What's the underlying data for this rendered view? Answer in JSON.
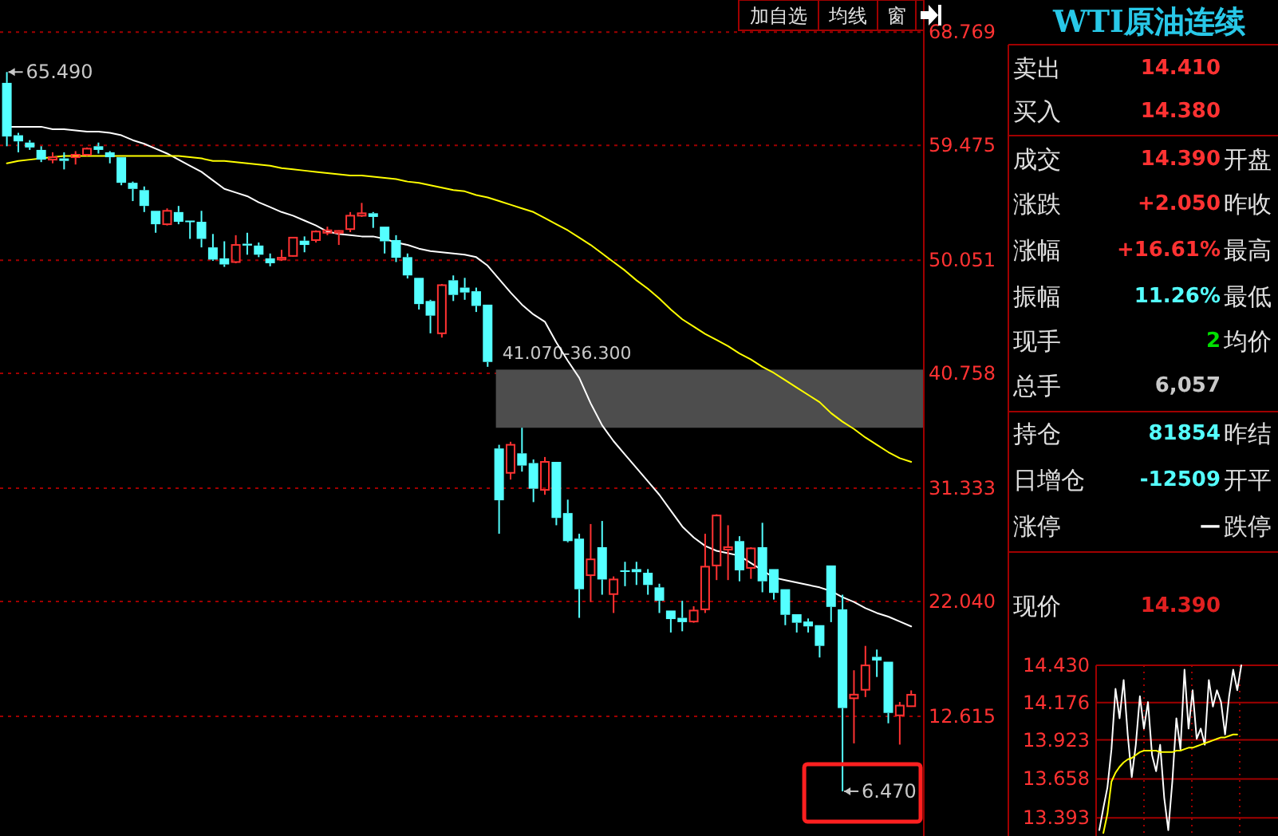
{
  "chart_data": [
    {
      "type": "candlestick",
      "categories": [
        null,
        null,
        null,
        null,
        null,
        null,
        null,
        null,
        null,
        null,
        null,
        null,
        null,
        null,
        null,
        null,
        null,
        null,
        null,
        null,
        null,
        null,
        null,
        null,
        null,
        null,
        null,
        null,
        null,
        null,
        null,
        null,
        null,
        null,
        null,
        null,
        null,
        null,
        null,
        null,
        null,
        null,
        null,
        null,
        null,
        null,
        null,
        null,
        null,
        null,
        null,
        null,
        null,
        null,
        null,
        null,
        null,
        null,
        null,
        null,
        null,
        null,
        null,
        null,
        null,
        null,
        null,
        null,
        null,
        null,
        null,
        null,
        null,
        null,
        null,
        null,
        null,
        null,
        null,
        null
      ],
      "ohlc": [
        [
          64.6,
          65.49,
          59.4,
          60.2
        ],
        [
          60.3,
          60.5,
          58.9,
          59.8
        ],
        [
          59.7,
          59.9,
          59.1,
          59.3
        ],
        [
          59.1,
          59.4,
          58.1,
          58.3
        ],
        [
          58.3,
          58.9,
          58.0,
          58.5
        ],
        [
          58.4,
          58.9,
          57.5,
          58.2
        ],
        [
          58.5,
          59.0,
          57.9,
          58.7
        ],
        [
          58.7,
          59.3,
          58.6,
          59.2
        ],
        [
          59.4,
          59.7,
          58.8,
          59.1
        ],
        [
          58.9,
          59.0,
          58.0,
          58.5
        ],
        [
          58.5,
          58.5,
          56.2,
          56.4
        ],
        [
          56.4,
          56.5,
          54.9,
          55.9
        ],
        [
          55.8,
          56.1,
          54.0,
          54.5
        ],
        [
          54.1,
          54.1,
          52.3,
          53.0
        ],
        [
          53.0,
          54.3,
          52.9,
          54.1
        ],
        [
          54.0,
          54.5,
          53.0,
          53.2
        ],
        [
          53.3,
          53.3,
          51.8,
          53.2
        ],
        [
          53.2,
          54.1,
          51.1,
          51.8
        ],
        [
          51.1,
          52.2,
          50.0,
          50.1
        ],
        [
          50.2,
          51.6,
          49.5,
          49.7
        ],
        [
          49.9,
          52.1,
          49.8,
          51.3
        ],
        [
          51.4,
          52.3,
          50.5,
          51.25
        ],
        [
          51.25,
          51.5,
          50.3,
          50.5
        ],
        [
          50.2,
          50.6,
          49.55,
          49.8
        ],
        [
          50.1,
          50.9,
          50.0,
          50.25
        ],
        [
          50.4,
          51.95,
          50.35,
          51.9
        ],
        [
          51.65,
          52.0,
          50.7,
          51.3
        ],
        [
          51.7,
          52.5,
          51.5,
          52.4
        ],
        [
          52.3,
          52.8,
          52.1,
          52.5
        ],
        [
          52.3,
          52.5,
          51.3,
          52.45
        ],
        [
          52.6,
          54.0,
          52.35,
          53.7
        ],
        [
          53.7,
          54.75,
          53.6,
          53.9
        ],
        [
          53.9,
          54.0,
          52.7,
          53.6
        ],
        [
          52.8,
          52.8,
          50.6,
          51.6
        ],
        [
          51.7,
          52.1,
          49.9,
          50.25
        ],
        [
          50.3,
          50.6,
          48.55,
          48.8
        ],
        [
          48.6,
          48.6,
          46.0,
          46.45
        ],
        [
          46.7,
          46.8,
          44.05,
          45.5
        ],
        [
          44.05,
          48.1,
          43.7,
          48.0
        ],
        [
          48.4,
          48.8,
          46.7,
          47.2
        ],
        [
          47.8,
          48.6,
          46.8,
          47.4
        ],
        [
          47.5,
          47.8,
          45.8,
          46.3
        ],
        [
          46.4,
          46.4,
          41.3,
          41.7
        ],
        [
          34.6,
          34.9,
          27.6,
          30.35
        ],
        [
          32.6,
          35.15,
          32.05,
          34.9
        ],
        [
          34.2,
          36.3,
          32.7,
          33.2
        ],
        [
          33.4,
          33.7,
          30.2,
          31.3
        ],
        [
          31.2,
          33.9,
          30.8,
          33.5
        ],
        [
          33.5,
          33.5,
          28.3,
          28.9
        ],
        [
          29.3,
          30.4,
          26.9,
          27.0
        ],
        [
          27.2,
          27.6,
          20.7,
          23.05
        ],
        [
          24.2,
          28.4,
          22.0,
          25.5
        ],
        [
          26.5,
          28.65,
          22.6,
          23.85
        ],
        [
          22.65,
          24.1,
          21.1,
          23.85
        ],
        [
          24.6,
          25.3,
          23.3,
          24.5
        ],
        [
          24.7,
          25.3,
          23.4,
          24.45
        ],
        [
          24.4,
          24.7,
          22.6,
          23.4
        ],
        [
          23.2,
          23.5,
          21.1,
          22.1
        ],
        [
          21.3,
          21.3,
          19.5,
          20.6
        ],
        [
          20.7,
          22.1,
          19.6,
          20.35
        ],
        [
          20.4,
          21.65,
          20.3,
          21.3
        ],
        [
          21.4,
          27.6,
          21.1,
          24.9
        ],
        [
          25.0,
          29.2,
          23.8,
          29.1
        ],
        [
          26.3,
          28.3,
          23.8,
          26.5
        ],
        [
          27.0,
          27.4,
          23.7,
          24.6
        ],
        [
          24.8,
          26.5,
          23.9,
          26.4
        ],
        [
          26.5,
          28.5,
          22.8,
          23.7
        ],
        [
          24.7,
          24.7,
          22.2,
          22.75
        ],
        [
          23.05,
          23.05,
          20.1,
          20.95
        ],
        [
          21.0,
          21.0,
          19.5,
          20.3
        ],
        [
          20.4,
          20.65,
          19.5,
          20.0
        ],
        [
          20.1,
          20.1,
          17.45,
          18.4
        ],
        [
          25.0,
          25.0,
          20.35,
          21.6
        ],
        [
          21.4,
          22.6,
          6.47,
          13.3
        ],
        [
          14.1,
          16.4,
          10.4,
          14.4
        ],
        [
          14.8,
          18.4,
          14.2,
          16.8
        ],
        [
          17.5,
          18.1,
          15.85,
          17.2
        ],
        [
          17.1,
          17.1,
          12.05,
          12.9
        ],
        [
          12.7,
          13.8,
          10.3,
          13.5
        ],
        [
          13.45,
          14.75,
          13.4,
          14.39
        ]
      ],
      "colors": [
        "#54ffff",
        "#54ffff",
        "#54ffff",
        "#54ffff",
        "#ff3232",
        "#54ffff",
        "#ff3232",
        "#ff3232",
        "#54ffff",
        "#54ffff",
        "#54ffff",
        "#54ffff",
        "#54ffff",
        "#54ffff",
        "#ff3232",
        "#54ffff",
        "#54ffff",
        "#54ffff",
        "#54ffff",
        "#54ffff",
        "#ff3232",
        "#54ffff",
        "#54ffff",
        "#54ffff",
        "#ff3232",
        "#ff3232",
        "#54ffff",
        "#ff3232",
        "#ff3232",
        "#ff3232",
        "#ff3232",
        "#ff3232",
        "#54ffff",
        "#54ffff",
        "#54ffff",
        "#54ffff",
        "#54ffff",
        "#54ffff",
        "#ff3232",
        "#54ffff",
        "#54ffff",
        "#54ffff",
        "#54ffff",
        "#54ffff",
        "#ff3232",
        "#54ffff",
        "#54ffff",
        "#ff3232",
        "#54ffff",
        "#54ffff",
        "#54ffff",
        "#ff3232",
        "#54ffff",
        "#ff3232",
        "#54ffff",
        "#54ffff",
        "#54ffff",
        "#54ffff",
        "#54ffff",
        "#54ffff",
        "#ff3232",
        "#ff3232",
        "#ff3232",
        "#ff3232",
        "#54ffff",
        "#ff3232",
        "#54ffff",
        "#54ffff",
        "#54ffff",
        "#54ffff",
        "#54ffff",
        "#54ffff",
        "#54ffff",
        "#54ffff",
        "#ff3232",
        "#ff3232",
        "#54ffff",
        "#54ffff",
        "#ff3232",
        "#ff3232"
      ],
      "series": [
        {
          "type": "line",
          "color": "#ffffff",
          "values": [
            61.0,
            61.0,
            61.0,
            61.0,
            60.8,
            60.8,
            60.7,
            60.6,
            60.6,
            60.5,
            60.3,
            59.9,
            59.6,
            59.2,
            58.8,
            58.3,
            57.8,
            57.3,
            56.6,
            55.9,
            55.6,
            55.3,
            54.8,
            54.4,
            54.0,
            53.7,
            53.3,
            52.9,
            52.4,
            52.2,
            52.1,
            52.0,
            52.0,
            51.8,
            51.5,
            51.3,
            51.0,
            50.8,
            50.7,
            50.6,
            50.5,
            50.3,
            49.6,
            48.5,
            47.4,
            46.4,
            45.6,
            45.0,
            43.3,
            41.8,
            40.4,
            38.3,
            36.5,
            35.2,
            34.1,
            33.0,
            31.9,
            30.8,
            29.5,
            28.2,
            27.3,
            26.6,
            26.2,
            26.0,
            25.8,
            25.2,
            24.6,
            24.0,
            23.8,
            23.6,
            23.4,
            23.2,
            22.9,
            22.4,
            22.0,
            21.5,
            21.1,
            20.8,
            20.4,
            20.0
          ]
        },
        {
          "type": "line",
          "color": "#ffff00",
          "values": [
            58.0,
            58.2,
            58.3,
            58.4,
            58.5,
            58.6,
            58.6,
            58.6,
            58.6,
            58.6,
            58.6,
            58.6,
            58.6,
            58.6,
            58.6,
            58.6,
            58.5,
            58.4,
            58.2,
            58.2,
            58.1,
            58.0,
            57.9,
            57.8,
            57.6,
            57.5,
            57.4,
            57.3,
            57.2,
            57.1,
            57.0,
            57.0,
            56.9,
            56.8,
            56.7,
            56.5,
            56.4,
            56.2,
            56.0,
            55.8,
            55.7,
            55.4,
            55.2,
            54.9,
            54.6,
            54.3,
            54.0,
            53.5,
            53.0,
            52.5,
            51.9,
            51.3,
            50.6,
            49.9,
            49.2,
            48.4,
            47.7,
            46.9,
            46.0,
            45.2,
            44.6,
            44.0,
            43.5,
            43.0,
            42.4,
            41.9,
            41.3,
            40.8,
            40.2,
            39.6,
            39.0,
            38.4,
            37.5,
            36.8,
            36.2,
            35.5,
            34.9,
            34.3,
            33.8,
            33.5
          ]
        }
      ],
      "ylim": [
        2.8,
        71.4
      ],
      "yticks": [
        68.769,
        59.475,
        50.051,
        40.758,
        31.333,
        {
          "value": 22.04,
          "label": "22.040"
        },
        12.615
      ],
      "grid": "y",
      "tick_labels": "y",
      "bands": [
        {
          "axis": "y",
          "from": 36.3,
          "to": 41.07,
          "color": "#4d4d4d"
        }
      ],
      "annotations": [
        "65.490",
        {
          "text": "41.070-36.300",
          "y": 41.07
        },
        "6.470",
        "加自选",
        "均线",
        "窗"
      ]
    },
    {
      "type": "other",
      "title": "WTI原油连续",
      "categories": [
        "卖出",
        "买入",
        "成交",
        "涨跌",
        "涨幅",
        "振幅",
        "现手",
        "总手",
        "持仓",
        "日增仓",
        "涨停",
        "现价"
      ],
      "value_labels": [
        "14.410",
        "14.380",
        "14.390",
        "+2.050",
        "+16.61%",
        "11.26%",
        "2",
        "6,057",
        "81854",
        "-12509",
        "—",
        "14.390"
      ],
      "colors": [
        "#ff3232",
        "#ff3232",
        "#ff3232",
        "#ff3232",
        "#ff3232",
        "#54ffff",
        "#00e000",
        "#c8c8c8",
        "#54ffff",
        "#54ffff",
        "#ffffff",
        "#e02020"
      ],
      "y2_categories": [
        null,
        null,
        "开盘",
        "昨收",
        "最高",
        "最低",
        "均价",
        null,
        "昨结",
        "开平",
        "跌停",
        null
      ]
    },
    {
      "type": "line",
      "categories": [
        null,
        null,
        null,
        null,
        null,
        null,
        null,
        null,
        null,
        null,
        null,
        null,
        null,
        null,
        null,
        null,
        null,
        null,
        null,
        null,
        null,
        null,
        null,
        null,
        null,
        null,
        null,
        null,
        null,
        null,
        null,
        null,
        null,
        null,
        null,
        null
      ],
      "series": [
        {
          "color": "#ffffff",
          "values": [
            13.31,
            13.46,
            13.6,
            13.86,
            14.27,
            14.07,
            14.33,
            13.96,
            13.67,
            13.89,
            14.22,
            14.0,
            14.18,
            13.82,
            13.71,
            13.89,
            13.53,
            13.31,
            13.64,
            14.07,
            13.86,
            14.4,
            14.0,
            14.26,
            13.93,
            14.0,
            13.89,
            14.33,
            14.15,
            14.26,
            14.18,
            13.96,
            14.22,
            14.4,
            14.26,
            14.43
          ]
        },
        {
          "color": "#ffff00",
          "values": [
            null,
            13.29,
            13.42,
            13.64,
            13.7,
            13.74,
            13.77,
            13.79,
            13.8,
            13.82,
            13.84,
            13.85,
            13.85,
            13.85,
            13.85,
            13.84,
            13.84,
            13.84,
            13.84,
            13.85,
            13.85,
            13.86,
            13.87,
            13.87,
            13.88,
            13.89,
            13.9,
            13.91,
            13.92,
            13.93,
            13.94,
            13.94,
            13.95,
            13.96,
            13.96,
            null
          ]
        }
      ],
      "ylim": [
        13.27,
        14.43
      ],
      "yticks": [
        {
          "value": 14.43,
          "label": "14.430"
        },
        14.176,
        13.923,
        13.658,
        13.393
      ],
      "grid": "y",
      "tick_labels": "y"
    }
  ]
}
